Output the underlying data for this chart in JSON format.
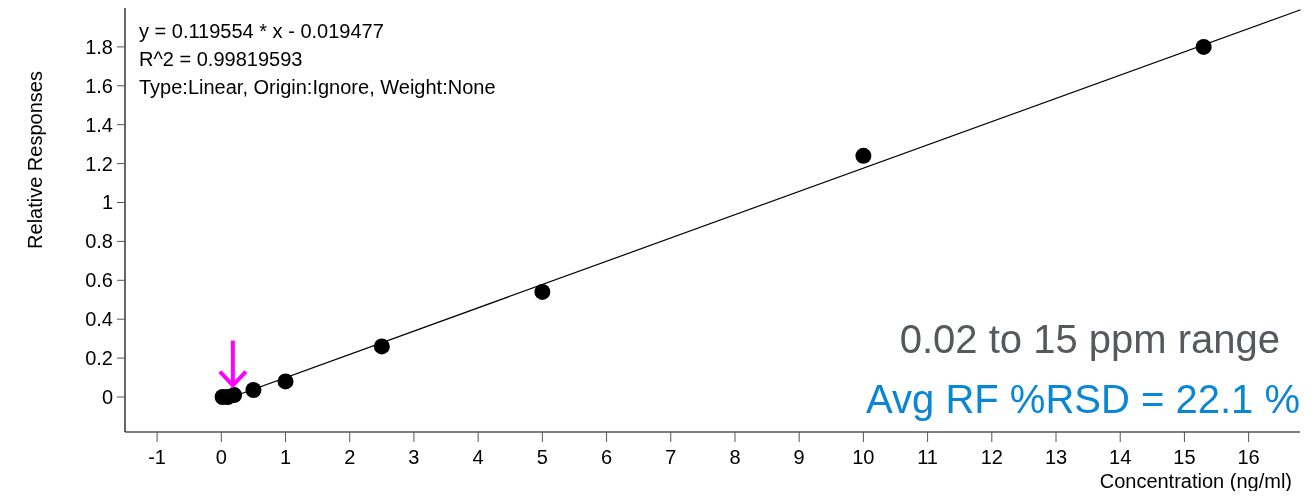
{
  "chart_data": {
    "type": "scatter",
    "xlabel": "Concentration (ng/ml)",
    "ylabel": "Relative Responses",
    "xlim": [
      -1.5,
      16.8
    ],
    "xticks": [
      -1,
      0,
      1,
      2,
      3,
      4,
      5,
      6,
      7,
      8,
      9,
      10,
      11,
      12,
      13,
      14,
      15,
      16
    ],
    "ylim": [
      -0.18,
      2.0
    ],
    "yticks": [
      0,
      0.2,
      0.4,
      0.6,
      0.8,
      1,
      1.2,
      1.4,
      1.6,
      1.8
    ],
    "grid": false,
    "marker": "circle",
    "series": [
      {
        "type": "line",
        "color": "#000000",
        "marker": "none",
        "x": [
          0.2,
          16.8
        ],
        "values": [
          0.004,
          1.99
        ]
      },
      {
        "color": "#000000",
        "x": [
          0.02,
          0.1,
          0.2,
          0.5,
          1,
          2.5,
          5,
          10,
          15.3
        ],
        "values": [
          0,
          0,
          0.01,
          0.036,
          0.08,
          0.26,
          0.54,
          1.24,
          1.8
        ]
      }
    ],
    "annotations": [
      "y = 0.119554 * x  - 0.019477",
      "R^2 = 0.99819593",
      "Type:Linear, Origin:Ignore, Weight:None",
      "0.02 to 15 ppm range",
      "Avg RF %RSD = 22.1 %"
    ]
  }
}
